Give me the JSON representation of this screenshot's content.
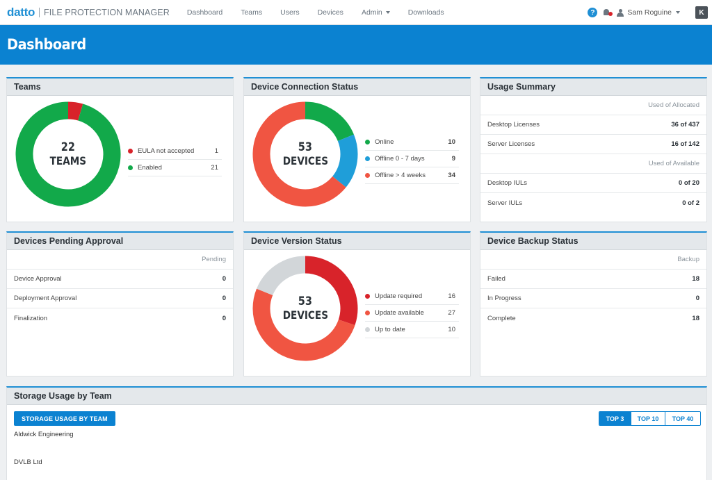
{
  "nav": {
    "brand": "datto",
    "app_name": "FILE PROTECTION MANAGER",
    "items": [
      {
        "label": "Dashboard"
      },
      {
        "label": "Teams"
      },
      {
        "label": "Users"
      },
      {
        "label": "Devices"
      },
      {
        "label": "Admin",
        "dropdown": true
      },
      {
        "label": "Downloads"
      }
    ],
    "help_glyph": "?",
    "user_name": "Sam Roguine",
    "kaseya_glyph": "K"
  },
  "page": {
    "title": "Dashboard"
  },
  "teams": {
    "title": "Teams",
    "total": "22",
    "unit": "TEAMS",
    "legend": [
      {
        "label": "EULA not accepted",
        "value": "1",
        "color": "#d8232a"
      },
      {
        "label": "Enabled",
        "value": "21",
        "color": "#12a94a"
      }
    ]
  },
  "connection": {
    "title": "Device Connection Status",
    "total": "53",
    "unit": "DEVICES",
    "legend": [
      {
        "label": "Online",
        "value": "10",
        "color": "#12a94a"
      },
      {
        "label": "Offline 0 - 7 days",
        "value": "9",
        "color": "#1f9ed9"
      },
      {
        "label": "Offline > 4 weeks",
        "value": "34",
        "color": "#f05542"
      }
    ]
  },
  "usage": {
    "title": "Usage Summary",
    "header1": "Used of Allocated",
    "rows1": [
      {
        "label": "Desktop Licenses",
        "value": "36 of 437"
      },
      {
        "label": "Server Licenses",
        "value": "16 of 142"
      }
    ],
    "header2": "Used of Available",
    "rows2": [
      {
        "label": "Desktop IULs",
        "value": "0 of 20"
      },
      {
        "label": "Server IULs",
        "value": "0 of 2"
      }
    ]
  },
  "pending": {
    "title": "Devices Pending Approval",
    "header": "Pending",
    "rows": [
      {
        "label": "Device Approval",
        "value": "0"
      },
      {
        "label": "Deployment Approval",
        "value": "0"
      },
      {
        "label": "Finalization",
        "value": "0"
      }
    ]
  },
  "version": {
    "title": "Device Version Status",
    "total": "53",
    "unit": "DEVICES",
    "legend": [
      {
        "label": "Update required",
        "value": "16",
        "color": "#d8232a"
      },
      {
        "label": "Update available",
        "value": "27",
        "color": "#f05542"
      },
      {
        "label": "Up to date",
        "value": "10",
        "color": "#d2d6d9"
      }
    ]
  },
  "backup": {
    "title": "Device Backup Status",
    "header": "Backup",
    "rows": [
      {
        "label": "Failed",
        "value": "18"
      },
      {
        "label": "In Progress",
        "value": "0"
      },
      {
        "label": "Complete",
        "value": "18"
      }
    ]
  },
  "storage": {
    "title": "Storage Usage by Team",
    "button": "STORAGE USAGE BY TEAM",
    "tabs": [
      {
        "label": "TOP 3",
        "active": true
      },
      {
        "label": "TOP 10",
        "active": false
      },
      {
        "label": "TOP 40",
        "active": false
      }
    ],
    "teams": [
      "Aldwick Engineering",
      "DVLB Ltd"
    ]
  }
}
